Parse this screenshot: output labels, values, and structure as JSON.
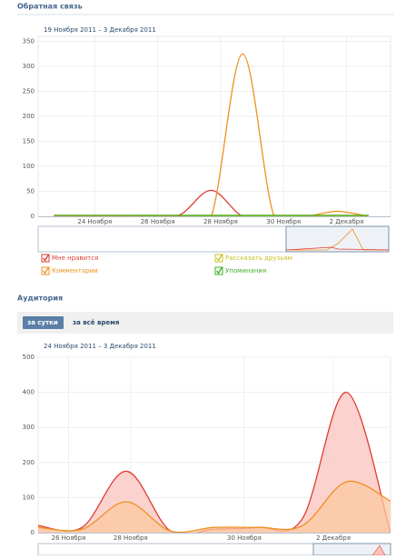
{
  "sections": [
    {
      "title": "Обратная связь"
    },
    {
      "title": "Аудитория"
    }
  ],
  "tabs": [
    "за сутки",
    "за всё время"
  ],
  "chart_data": [
    {
      "type": "line",
      "subtitle": "19 Ноября 2011 – 3 Декабря 2011",
      "x": [
        0.5,
        1.5,
        2.5,
        3.5,
        4.5,
        5.5,
        6.5,
        7.5,
        8.5,
        9.5,
        10.5
      ],
      "xlim": [
        0,
        11.2
      ],
      "xticks": [
        {
          "value": 1.8,
          "label": "24 Ноября"
        },
        {
          "value": 3.8,
          "label": "26 Ноября"
        },
        {
          "value": 5.8,
          "label": "28 Ноября"
        },
        {
          "value": 7.8,
          "label": "30 Ноября"
        },
        {
          "value": 9.8,
          "label": "2 Декабря"
        }
      ],
      "ylim": [
        0,
        360
      ],
      "yticks": [
        0,
        50,
        100,
        150,
        200,
        250,
        300,
        350
      ],
      "grid": true,
      "legend": "bottom",
      "series": [
        {
          "name": "Мне нравится",
          "color": "#e03b30",
          "values": [
            0,
            0,
            0,
            0,
            3,
            52,
            0,
            0,
            0,
            0,
            0
          ]
        },
        {
          "name": "Рассказать друзьям",
          "color": "#c8c020",
          "values": [
            0,
            0,
            0,
            0,
            0,
            0,
            0,
            0,
            0,
            0,
            0
          ]
        },
        {
          "name": "Комментарии",
          "color": "#f0901e",
          "values": [
            0,
            0,
            0,
            2,
            0,
            0,
            325,
            0,
            0,
            10,
            0
          ]
        },
        {
          "name": "Упоминания",
          "color": "#3fae2a",
          "values": [
            2,
            2,
            2,
            2,
            2,
            2,
            2,
            2,
            2,
            2,
            2
          ]
        }
      ]
    },
    {
      "type": "area",
      "subtitle": "24 Ноября 2011 – 3 Декабря 2011",
      "x": [
        0,
        1,
        2,
        3,
        4,
        5,
        6,
        7,
        8
      ],
      "xlim": [
        0,
        8
      ],
      "xticks": [
        {
          "value": 0.69,
          "label": "26 Ноября"
        },
        {
          "value": 2.1,
          "label": "28 Ноября"
        },
        {
          "value": 4.68,
          "label": "30 Ноября"
        },
        {
          "value": 6.7,
          "label": "2 Декабря"
        }
      ],
      "ylim": [
        0,
        500
      ],
      "yticks": [
        0,
        100,
        200,
        300,
        400,
        500
      ],
      "grid": true,
      "series": [
        {
          "color": "#e03b30",
          "fill": "#fbc3bd",
          "values": [
            20,
            15,
            175,
            5,
            10,
            15,
            40,
            400,
            0
          ]
        },
        {
          "color": "#f0901e",
          "fill": "#fcc8a0",
          "values": [
            15,
            10,
            88,
            5,
            15,
            15,
            20,
            145,
            90
          ]
        }
      ]
    }
  ]
}
